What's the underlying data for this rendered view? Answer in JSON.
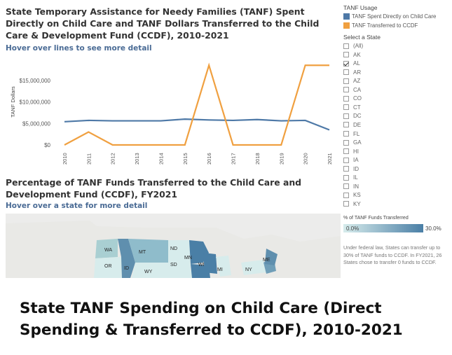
{
  "line_chart": {
    "title": "State Temporary Assistance for Needy Families (TANF) Spent Directly on Child Care and TANF Dollars Transferred to the Child Care & Development Fund (CCDF), 2010-2021",
    "hover_hint": "Hover over lines to see more detail"
  },
  "chart_data": {
    "type": "line",
    "x": [
      "2010",
      "2011",
      "2012",
      "2013",
      "2014",
      "2015",
      "2016",
      "2017",
      "2018",
      "2019",
      "2020",
      "2021"
    ],
    "ylabel": "TANF Dollars",
    "ylim": [
      0,
      20000000
    ],
    "y_ticks": [
      0,
      5000000,
      10000000,
      15000000
    ],
    "y_tick_labels": [
      "$0",
      "$5,000,000",
      "$10,000,000",
      "$15,000,000"
    ],
    "series": [
      {
        "name": "TANF Spent Directly on Child Care",
        "color": "#4e79a7",
        "values": [
          5400000,
          5700000,
          5600000,
          5600000,
          5600000,
          6000000,
          5800000,
          5700000,
          5900000,
          5600000,
          5700000,
          3500000
        ]
      },
      {
        "name": "TANF Transferred to CCDF",
        "color": "#f0a040",
        "values": [
          0,
          3000000,
          0,
          0,
          0,
          0,
          18500000,
          0,
          0,
          0,
          18500000,
          18500000
        ]
      }
    ],
    "grid": false,
    "legend_placement": "right"
  },
  "legend": {
    "title": "TANF Usage",
    "items": [
      {
        "label": "TANF Spent Directly on Child Care",
        "color": "#4e79a7"
      },
      {
        "label": "TANF Transferred to CCDF",
        "color": "#f0a040"
      }
    ]
  },
  "state_filter": {
    "title": "Select a State",
    "options": [
      {
        "label": "(All)",
        "checked": false
      },
      {
        "label": "AK",
        "checked": false
      },
      {
        "label": "AL",
        "checked": true
      },
      {
        "label": "AR",
        "checked": false
      },
      {
        "label": "AZ",
        "checked": false
      },
      {
        "label": "CA",
        "checked": false
      },
      {
        "label": "CO",
        "checked": false
      },
      {
        "label": "CT",
        "checked": false
      },
      {
        "label": "DC",
        "checked": false
      },
      {
        "label": "DE",
        "checked": false
      },
      {
        "label": "FL",
        "checked": false
      },
      {
        "label": "GA",
        "checked": false
      },
      {
        "label": "HI",
        "checked": false
      },
      {
        "label": "IA",
        "checked": false
      },
      {
        "label": "ID",
        "checked": false
      },
      {
        "label": "IL",
        "checked": false
      },
      {
        "label": "IN",
        "checked": false
      },
      {
        "label": "KS",
        "checked": false
      },
      {
        "label": "KY",
        "checked": false
      }
    ]
  },
  "map_chart": {
    "title": "Percentage of TANF Funds Transferred to the Child Care and Development Fund (CCDF), FY2021",
    "hover_hint": "Hover over a state for more detail",
    "states": [
      "WA",
      "MT",
      "ND",
      "MN",
      "OR",
      "ID",
      "SD",
      "WI",
      "WY",
      "MI",
      "NY",
      "ME"
    ],
    "scale_title": "% of TANF Funds Transferred",
    "scale_min": "0.0%",
    "scale_max": "30.0%",
    "scale_colors": [
      "#d7ecec",
      "#4a7fa6"
    ],
    "note": "Under federal law, States can transfer up to 30% of TANF funds to CCDF. In FY2021, 26 States chose to transfer 0 funds to CCDF."
  },
  "caption": "State TANF Spending on Child Care (Direct Spending & Transferred to CCDF), 2010-2021"
}
